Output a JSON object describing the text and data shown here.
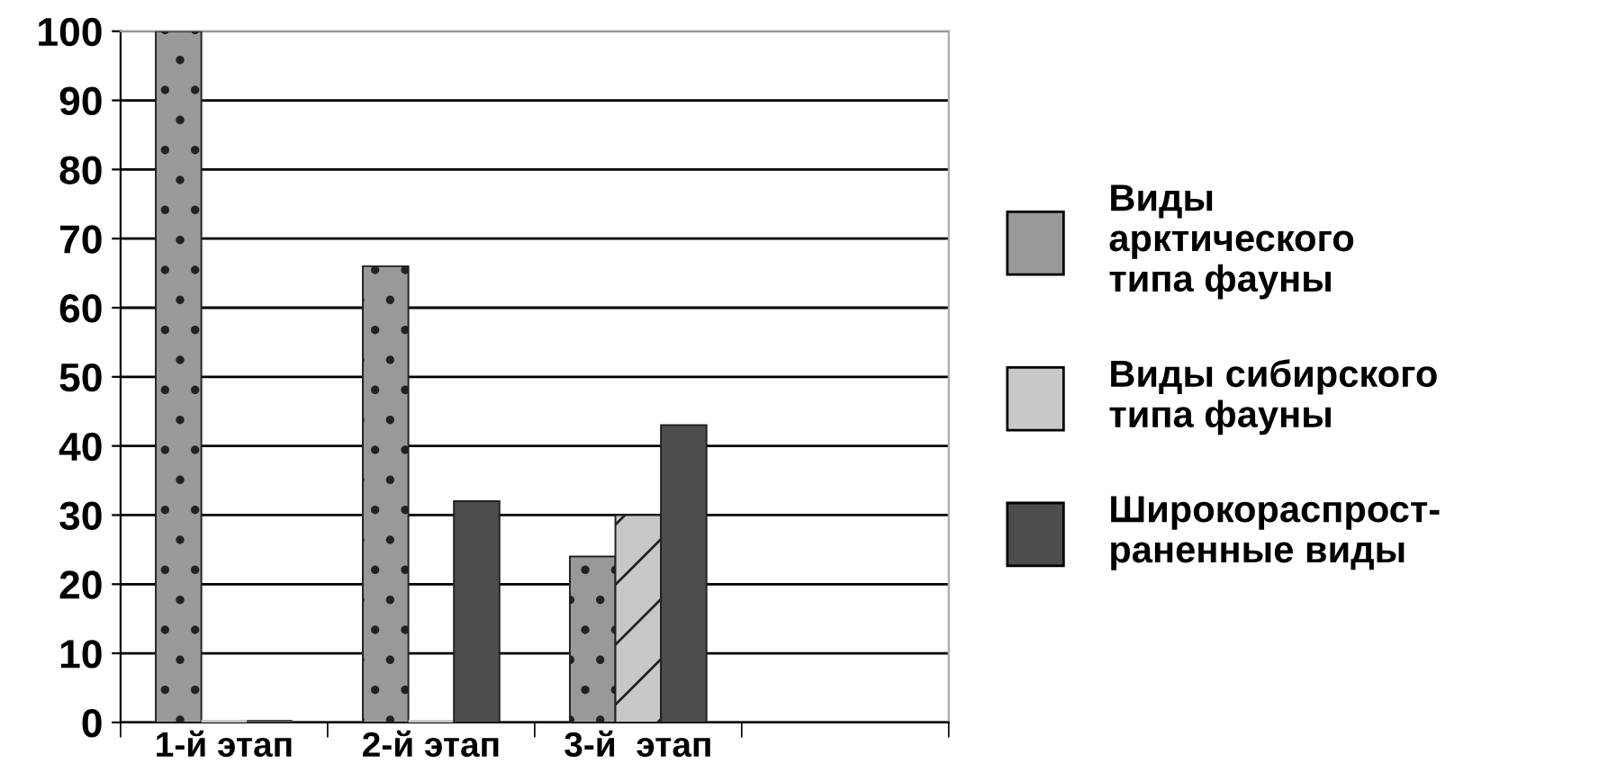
{
  "chart_data": {
    "type": "bar",
    "categories": [
      "1-й этап",
      "2-й этап",
      "3-й  этап",
      null
    ],
    "series": [
      {
        "name": "Виды\nарктического\nтипа фауны",
        "color": "#999999",
        "values": [
          100,
          66,
          24,
          null
        ]
      },
      {
        "name": "Виды сибирского\nтипа фауны",
        "color": "#c8c8c8",
        "values": [
          0,
          0,
          30,
          null
        ]
      },
      {
        "name": "Широкораспрост-\nраненные виды",
        "color": "#4d4d4d",
        "values": [
          0,
          32,
          43,
          null
        ]
      }
    ],
    "ylim": [
      0,
      100
    ],
    "yticks": [
      0,
      10,
      20,
      30,
      40,
      50,
      60,
      70,
      80,
      90,
      100
    ],
    "grid": "y",
    "legend": "right"
  }
}
